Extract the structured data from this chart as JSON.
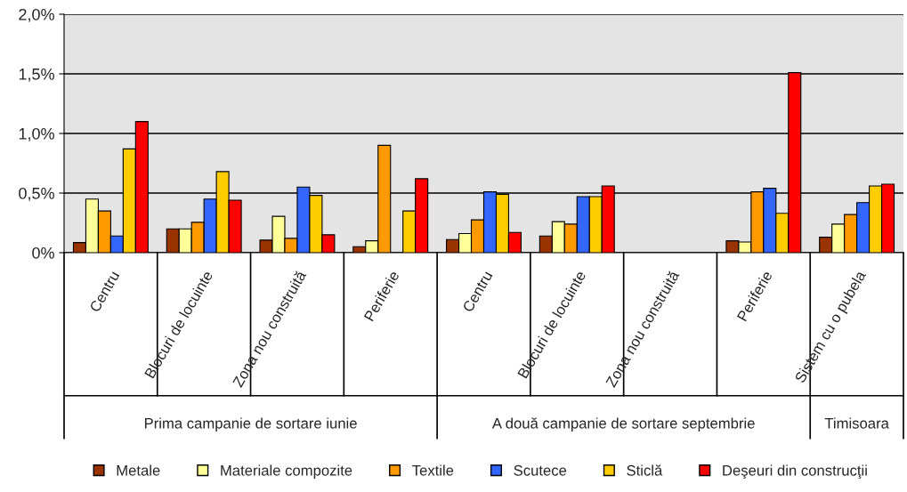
{
  "chart_data": {
    "type": "bar",
    "categories": [
      "Centru",
      "Blocuri de locuinte",
      "Zona nou construită",
      "Periferie",
      "Centru",
      "Blocuri de locuinte",
      "Zona nou construită",
      "Periferie",
      "Sistem cu o pubela"
    ],
    "series": [
      {
        "name": "Metale",
        "color": "#993300",
        "values": [
          0.085,
          0.2,
          0.105,
          0.05,
          0.11,
          0.14,
          null,
          0.1,
          0.13
        ]
      },
      {
        "name": "Materiale compozite",
        "color": "#ffff99",
        "values": [
          0.45,
          0.2,
          0.305,
          0.1,
          0.16,
          0.26,
          null,
          0.09,
          0.24
        ]
      },
      {
        "name": "Textile",
        "color": "#ff9900",
        "values": [
          0.35,
          0.255,
          0.12,
          0.9,
          0.275,
          0.24,
          null,
          0.51,
          0.32
        ]
      },
      {
        "name": "Scutece",
        "color": "#3366ff",
        "values": [
          0.14,
          0.45,
          0.55,
          null,
          0.51,
          0.47,
          null,
          0.54,
          0.42
        ]
      },
      {
        "name": "Sticlă",
        "color": "#ffcc00",
        "values": [
          0.87,
          0.68,
          0.48,
          0.35,
          0.49,
          0.47,
          null,
          0.33,
          0.56
        ]
      },
      {
        "name": "Deşeuri din construcţii",
        "color": "#ff0000",
        "values": [
          1.1,
          0.44,
          0.15,
          0.62,
          0.17,
          0.56,
          null,
          1.51,
          0.575
        ]
      }
    ],
    "ylim": [
      0,
      2
    ],
    "yticks": [
      {
        "value": 0,
        "label": "0%"
      },
      {
        "value": 0.5,
        "label": "0,5%"
      },
      {
        "value": 1,
        "label": "1,0%"
      },
      {
        "value": 1.5,
        "label": "1,5%"
      },
      {
        "value": 2,
        "label": "2,0%"
      }
    ],
    "grid": "y",
    "legend": "bottom",
    "annotations": [
      "Prima campanie de sortare iunie",
      "A două campanie de sortare septembrie",
      "Timisoara"
    ]
  }
}
